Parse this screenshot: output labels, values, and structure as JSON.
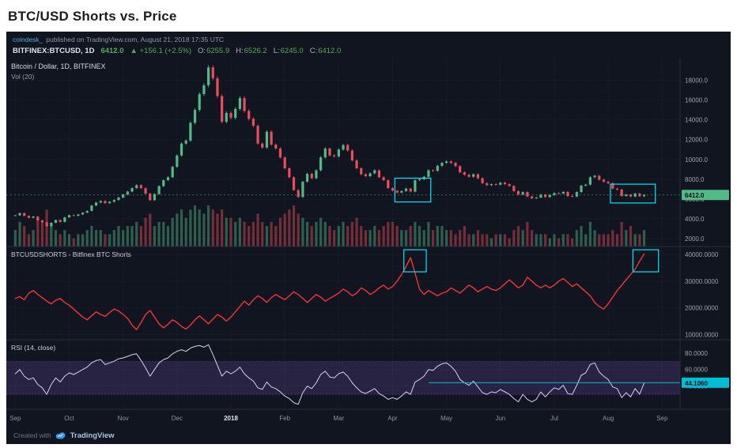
{
  "page": {
    "title": "BTC/USD Shorts vs. Price"
  },
  "header": {
    "author": "coindesk_",
    "published": "published on TradingView.com, August 21, 2018 17:35 UTC",
    "symbol": "BITFINEX:BTCUSD, 1D",
    "last": "6412.0",
    "change": "▲ +156.1 (+2.5%)",
    "ohlc": [
      {
        "k": "O:",
        "v": "6255.9"
      },
      {
        "k": "H:",
        "v": "6526.2"
      },
      {
        "k": "L:",
        "v": "6245.0"
      },
      {
        "k": "C:",
        "v": "6412.0"
      }
    ]
  },
  "footer": {
    "created_with": "Created with",
    "brand": "TradingView"
  },
  "colors": {
    "up": "#53b987",
    "down": "#eb4d5c",
    "accent_cyan": "#00e5ff",
    "badge_price": "#53b987",
    "badge_rsi": "#00bcd4",
    "grid": "rgba(255,255,255,0.07)",
    "separator": "#2a2f3a"
  },
  "chart_data": [
    {
      "type": "candlestick",
      "title": "Bitcoin / Dollar, 1D, BITFINEX",
      "overlay": "Vol (20)",
      "ylim": [
        1200,
        20200
      ],
      "y_ticks": [
        2000,
        4000,
        6000,
        8000,
        10000,
        12000,
        14000,
        16000,
        18000
      ],
      "tick_decimals": 1,
      "last": 6412.0,
      "last_label": "6412.0",
      "x_ticks": [
        "Sep",
        "Oct",
        "Nov",
        "Dec",
        "2018",
        "Feb",
        "Mar",
        "Apr",
        "May",
        "Jun",
        "Jul",
        "Aug",
        "Sep"
      ],
      "x_tick_indices": [
        0,
        12,
        24,
        36,
        48,
        60,
        72,
        84,
        96,
        108,
        120,
        132,
        144
      ],
      "closes": [
        4350,
        4580,
        4300,
        4100,
        4230,
        3850,
        3650,
        3250,
        3600,
        3880,
        3680,
        4150,
        4370,
        4300,
        4440,
        4620,
        4800,
        5340,
        5640,
        5800,
        5580,
        5720,
        5900,
        6150,
        6450,
        6750,
        7100,
        7400,
        7100,
        6550,
        5880,
        6500,
        7300,
        7900,
        8200,
        9250,
        10400,
        11600,
        11900,
        13700,
        15000,
        16600,
        17500,
        19300,
        18200,
        16400,
        13800,
        14700,
        14200,
        15100,
        16200,
        14900,
        14100,
        13400,
        11600,
        11200,
        12800,
        11500,
        11100,
        10200,
        9100,
        8200,
        6900,
        6200,
        7750,
        8550,
        8100,
        8900,
        10200,
        11100,
        10400,
        10300,
        11000,
        11450,
        10900,
        9900,
        9100,
        8500,
        8300,
        8600,
        8900,
        8200,
        7900,
        7100,
        6850,
        6650,
        6800,
        7050,
        6750,
        7900,
        8000,
        8250,
        8900,
        8850,
        9350,
        9650,
        9800,
        9650,
        9320,
        8700,
        8450,
        8250,
        8500,
        8100,
        7600,
        7400,
        7500,
        7450,
        7650,
        7500,
        7320,
        6800,
        6450,
        6700,
        6250,
        6080,
        6150,
        6450,
        6200,
        6400,
        6600,
        6550,
        6720,
        6300,
        6250,
        6700,
        7350,
        7450,
        8200,
        8350,
        7950,
        7750,
        7600,
        7050,
        6950,
        6300,
        6450,
        6250,
        6550,
        6280,
        6412
      ],
      "volumes": [
        4,
        6,
        5,
        3,
        4,
        7,
        6,
        9,
        5,
        4,
        3,
        4,
        3,
        2,
        3,
        3,
        4,
        5,
        4,
        4,
        3,
        3,
        4,
        5,
        4,
        5,
        5,
        6,
        5,
        7,
        8,
        5,
        6,
        6,
        5,
        7,
        8,
        9,
        7,
        9,
        10,
        9,
        8,
        10,
        9,
        8,
        9,
        7,
        7,
        6,
        7,
        6,
        5,
        6,
        8,
        6,
        5,
        6,
        5,
        7,
        8,
        9,
        10,
        8,
        7,
        6,
        5,
        6,
        7,
        6,
        5,
        4,
        5,
        6,
        5,
        6,
        7,
        5,
        4,
        4,
        5,
        4,
        5,
        6,
        6,
        5,
        4,
        4,
        5,
        6,
        5,
        4,
        6,
        4,
        5,
        5,
        4,
        4,
        3,
        4,
        5,
        3,
        3,
        4,
        3,
        3,
        2,
        3,
        3,
        3,
        2,
        4,
        5,
        4,
        6,
        4,
        3,
        3,
        3,
        2,
        3,
        2,
        3,
        3,
        2,
        4,
        5,
        3,
        6,
        4,
        3,
        3,
        3,
        4,
        3,
        6,
        4,
        5,
        3,
        3,
        4
      ],
      "highlights": [
        {
          "i0": 84.5,
          "i1": 92.5,
          "v0": 5700,
          "v1": 8100
        },
        {
          "i0": 132.5,
          "i1": 142.5,
          "v0": 5600,
          "v1": 7500
        }
      ]
    },
    {
      "type": "line",
      "title": "BTCUSDSHORTS - Bitfinex BTC Shorts",
      "color": "#f23535",
      "ylim": [
        8000,
        43000
      ],
      "y_ticks": [
        10000,
        20000,
        30000,
        40000
      ],
      "tick_decimals": 4,
      "values": [
        23500,
        24200,
        23000,
        25500,
        26500,
        25000,
        23800,
        22500,
        21500,
        22800,
        23500,
        22000,
        21000,
        19500,
        18000,
        16500,
        15500,
        17000,
        18500,
        17500,
        16800,
        18200,
        19500,
        18800,
        17500,
        16000,
        13500,
        11800,
        14500,
        17500,
        19000,
        16500,
        14000,
        12500,
        13800,
        15500,
        14500,
        13000,
        12000,
        13500,
        15500,
        17000,
        15500,
        14000,
        15800,
        17500,
        16500,
        15000,
        16500,
        18500,
        20500,
        22500,
        21000,
        23000,
        24500,
        23500,
        22000,
        23800,
        25000,
        24000,
        23000,
        24500,
        26000,
        25000,
        23500,
        22000,
        23500,
        25000,
        24000,
        22500,
        23500,
        24500,
        25500,
        27000,
        26000,
        24500,
        25500,
        27500,
        26500,
        25000,
        26000,
        27500,
        28500,
        27000,
        28000,
        30000,
        32500,
        35500,
        38800,
        33000,
        27000,
        25000,
        26500,
        25500,
        24500,
        25500,
        26000,
        27500,
        26500,
        25500,
        27000,
        28500,
        27500,
        26000,
        27000,
        28000,
        27000,
        26500,
        27500,
        29000,
        30500,
        29000,
        27500,
        28500,
        31500,
        30000,
        28500,
        27500,
        28500,
        27500,
        28500,
        30000,
        31000,
        29500,
        28000,
        29000,
        27500,
        26000,
        24500,
        22000,
        20500,
        19500,
        21500,
        24000,
        26500,
        28500,
        30500,
        32500,
        34500,
        37500,
        40200
      ],
      "highlights": [
        {
          "i0": 86.5,
          "i1": 91.5,
          "v0": 33500,
          "v1": 41800
        },
        {
          "i0": 137.5,
          "i1": 143.2,
          "v0": 33500,
          "v1": 41800
        }
      ]
    },
    {
      "type": "line",
      "title": "RSI (14, close)",
      "color": "#d8cff0",
      "ylim": [
        12,
        96
      ],
      "y_ticks": [
        40,
        60,
        80
      ],
      "tick_decimals": 4,
      "band": [
        30,
        70
      ],
      "values": [
        55,
        60,
        52,
        48,
        50,
        42,
        38,
        30,
        42,
        50,
        45,
        52,
        56,
        54,
        57,
        60,
        63,
        68,
        71,
        72,
        66,
        68,
        70,
        73,
        74,
        76,
        78,
        79,
        71,
        62,
        52,
        60,
        68,
        72,
        74,
        79,
        82,
        84,
        82,
        86,
        88,
        89,
        87,
        90,
        78,
        65,
        52,
        58,
        55,
        58,
        63,
        55,
        50,
        46,
        38,
        36,
        45,
        39,
        37,
        33,
        28,
        25,
        20,
        18,
        32,
        40,
        37,
        44,
        54,
        58,
        51,
        50,
        55,
        57,
        52,
        44,
        38,
        33,
        31,
        34,
        37,
        31,
        28,
        24,
        26,
        24,
        28,
        33,
        30,
        45,
        48,
        52,
        60,
        59,
        64,
        67,
        68,
        64,
        58,
        48,
        44,
        41,
        46,
        39,
        32,
        30,
        33,
        32,
        36,
        33,
        30,
        25,
        21,
        30,
        24,
        21,
        24,
        33,
        27,
        33,
        38,
        36,
        41,
        31,
        30,
        41,
        53,
        56,
        66,
        68,
        57,
        52,
        48,
        39,
        37,
        26,
        32,
        27,
        37,
        30,
        44.1
      ],
      "hline": {
        "value": 44.106,
        "label": "44.1060",
        "from_index": 92,
        "color": "#00bcd4"
      }
    }
  ]
}
